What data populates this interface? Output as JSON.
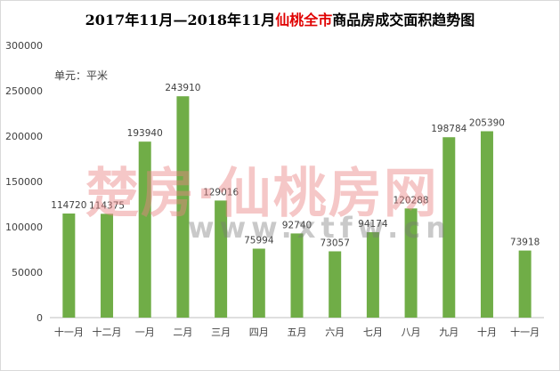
{
  "title": {
    "prefix": "2017年11月—2018年11月",
    "highlight": "仙桃全市",
    "suffix": "商品房成交面积趋势图"
  },
  "unit_label": "单元：平米",
  "watermark": {
    "main": "楚房·仙桃房网",
    "url": "www.xtfw.cn"
  },
  "colors": {
    "bar": "#70ad47",
    "highlight": "#e00000"
  },
  "chart_data": {
    "type": "bar",
    "categories": [
      "十一月",
      "十二月",
      "一月",
      "二月",
      "三月",
      "四月",
      "五月",
      "六月",
      "七月",
      "八月",
      "九月",
      "十月",
      "十一月"
    ],
    "values": [
      114720,
      114375,
      193940,
      243910,
      129016,
      75994,
      92740,
      73057,
      94174,
      120288,
      198784,
      205390,
      73918
    ],
    "yticks": [
      0,
      50000,
      100000,
      150000,
      200000,
      250000,
      300000
    ],
    "ylim": [
      0,
      300000
    ],
    "grid": false,
    "legend": "none"
  }
}
